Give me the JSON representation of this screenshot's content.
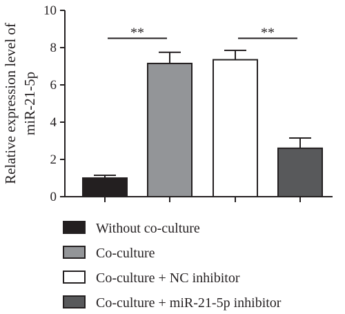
{
  "chart_data": {
    "type": "bar",
    "ylabel_line1": "Relative expression level of",
    "ylabel_line2": "miR-21-5p",
    "ylim": [
      0,
      10
    ],
    "yticks": [
      "0",
      "2",
      "4",
      "6",
      "8",
      "10"
    ],
    "categories": [
      "Without co-culture",
      "Co-culture",
      "Co-culture + NC inhibitor",
      "Co-culture + miR-21-5p inhibitor"
    ],
    "values": [
      1.0,
      7.15,
      7.35,
      2.6
    ],
    "errors": [
      0.15,
      0.6,
      0.5,
      0.55
    ],
    "colors": [
      "#231f20",
      "#939598",
      "#ffffff",
      "#58595b"
    ],
    "significance": [
      {
        "from": 0,
        "to": 1,
        "label": "**",
        "y": 8.5
      },
      {
        "from": 2,
        "to": 3,
        "label": "**",
        "y": 8.5
      }
    ],
    "legend_position": "bottom",
    "grid": false
  }
}
